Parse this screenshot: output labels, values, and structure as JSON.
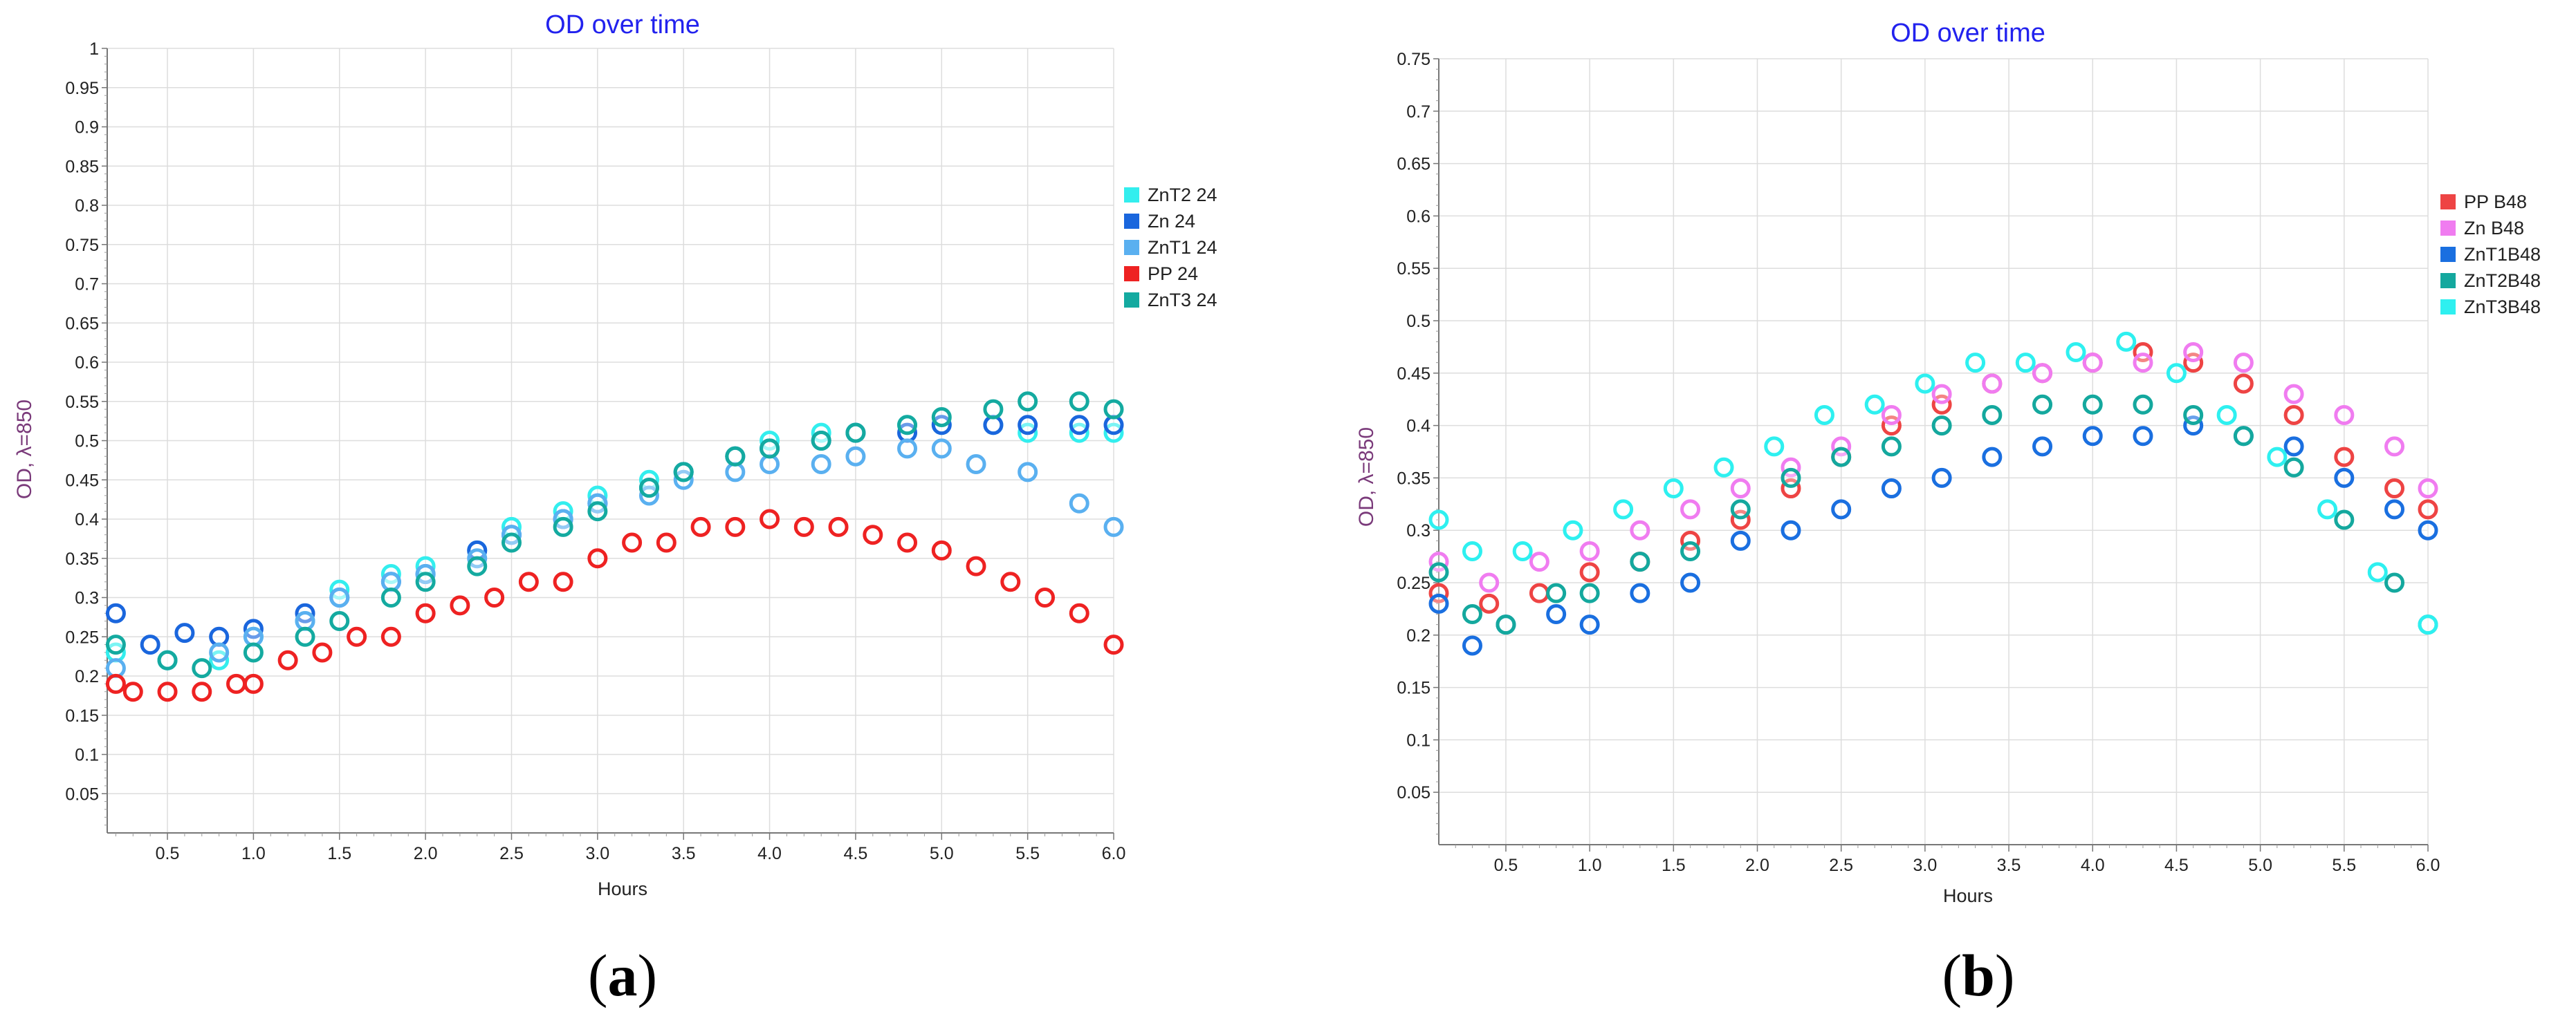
{
  "chart_data": [
    {
      "id": "a",
      "type": "scatter",
      "panel_label": "a",
      "title": "OD over time",
      "xlabel": "Hours",
      "ylabel": "OD, λ=850",
      "xlim": [
        0.15,
        6.0
      ],
      "ylim": [
        0,
        1
      ],
      "x_ticks": [
        "0.5",
        "1.0",
        "1.5",
        "2.0",
        "2.5",
        "3.0",
        "3.5",
        "4.0",
        "4.5",
        "5.0",
        "5.5",
        "6.0"
      ],
      "y_ticks": [
        "0.05",
        "0.1",
        "0.15",
        "0.2",
        "0.25",
        "0.3",
        "0.35",
        "0.4",
        "0.45",
        "0.5",
        "0.55",
        "0.6",
        "0.65",
        "0.7",
        "0.75",
        "0.8",
        "0.85",
        "0.9",
        "0.95",
        "1"
      ],
      "grid": true,
      "legend_position": "right",
      "series": [
        {
          "name": "ZnT2 24",
          "color": "#33eeee",
          "values": [
            [
              0.2,
              0.23
            ],
            [
              0.5,
              0.22
            ],
            [
              0.8,
              0.22
            ],
            [
              1.0,
              0.25
            ],
            [
              1.3,
              0.27
            ],
            [
              1.5,
              0.31
            ],
            [
              1.8,
              0.33
            ],
            [
              2.0,
              0.34
            ],
            [
              2.3,
              0.36
            ],
            [
              2.5,
              0.39
            ],
            [
              2.8,
              0.41
            ],
            [
              3.0,
              0.43
            ],
            [
              3.3,
              0.45
            ],
            [
              3.5,
              0.46
            ],
            [
              3.8,
              0.48
            ],
            [
              4.0,
              0.5
            ],
            [
              4.3,
              0.51
            ],
            [
              4.5,
              0.51
            ],
            [
              4.8,
              0.52
            ],
            [
              5.0,
              0.52
            ],
            [
              5.3,
              0.52
            ],
            [
              5.5,
              0.51
            ],
            [
              5.8,
              0.51
            ],
            [
              6.0,
              0.51
            ]
          ]
        },
        {
          "name": "Zn 24",
          "color": "#1a66dd",
          "values": [
            [
              0.2,
              0.28
            ],
            [
              0.4,
              0.24
            ],
            [
              0.6,
              0.255
            ],
            [
              0.8,
              0.25
            ],
            [
              1.0,
              0.26
            ],
            [
              1.3,
              0.28
            ],
            [
              1.5,
              0.3
            ],
            [
              1.8,
              0.32
            ],
            [
              2.0,
              0.33
            ],
            [
              2.3,
              0.36
            ],
            [
              2.5,
              0.38
            ],
            [
              2.8,
              0.4
            ],
            [
              3.0,
              0.42
            ],
            [
              3.3,
              0.44
            ],
            [
              3.5,
              0.46
            ],
            [
              3.8,
              0.48
            ],
            [
              4.0,
              0.49
            ],
            [
              4.3,
              0.5
            ],
            [
              4.5,
              0.51
            ],
            [
              4.8,
              0.51
            ],
            [
              5.0,
              0.52
            ],
            [
              5.3,
              0.52
            ],
            [
              5.5,
              0.52
            ],
            [
              5.8,
              0.52
            ],
            [
              6.0,
              0.52
            ]
          ]
        },
        {
          "name": "ZnT1 24",
          "color": "#5ab0f0",
          "values": [
            [
              0.2,
              0.21
            ],
            [
              0.5,
              0.22
            ],
            [
              0.8,
              0.23
            ],
            [
              1.0,
              0.25
            ],
            [
              1.3,
              0.27
            ],
            [
              1.5,
              0.3
            ],
            [
              1.8,
              0.32
            ],
            [
              2.0,
              0.33
            ],
            [
              2.3,
              0.35
            ],
            [
              2.5,
              0.38
            ],
            [
              2.8,
              0.4
            ],
            [
              3.0,
              0.42
            ],
            [
              3.3,
              0.43
            ],
            [
              3.5,
              0.45
            ],
            [
              3.8,
              0.46
            ],
            [
              4.0,
              0.47
            ],
            [
              4.3,
              0.47
            ],
            [
              4.5,
              0.48
            ],
            [
              4.8,
              0.49
            ],
            [
              5.0,
              0.49
            ],
            [
              5.2,
              0.47
            ],
            [
              5.5,
              0.46
            ],
            [
              5.8,
              0.42
            ],
            [
              6.0,
              0.39
            ]
          ]
        },
        {
          "name": "PP 24",
          "color": "#ee2222",
          "values": [
            [
              0.2,
              0.19
            ],
            [
              0.3,
              0.18
            ],
            [
              0.5,
              0.18
            ],
            [
              0.7,
              0.18
            ],
            [
              0.9,
              0.19
            ],
            [
              1.0,
              0.19
            ],
            [
              1.2,
              0.22
            ],
            [
              1.4,
              0.23
            ],
            [
              1.6,
              0.25
            ],
            [
              1.8,
              0.25
            ],
            [
              2.0,
              0.28
            ],
            [
              2.2,
              0.29
            ],
            [
              2.4,
              0.3
            ],
            [
              2.6,
              0.32
            ],
            [
              2.8,
              0.32
            ],
            [
              3.0,
              0.35
            ],
            [
              3.2,
              0.37
            ],
            [
              3.4,
              0.37
            ],
            [
              3.6,
              0.39
            ],
            [
              3.8,
              0.39
            ],
            [
              4.0,
              0.4
            ],
            [
              4.2,
              0.39
            ],
            [
              4.4,
              0.39
            ],
            [
              4.6,
              0.38
            ],
            [
              4.8,
              0.37
            ],
            [
              5.0,
              0.36
            ],
            [
              5.2,
              0.34
            ],
            [
              5.4,
              0.32
            ],
            [
              5.6,
              0.3
            ],
            [
              5.8,
              0.28
            ],
            [
              6.0,
              0.24
            ]
          ]
        },
        {
          "name": "ZnT3 24",
          "color": "#14aaa0",
          "values": [
            [
              0.2,
              0.24
            ],
            [
              0.5,
              0.22
            ],
            [
              0.7,
              0.21
            ],
            [
              1.0,
              0.23
            ],
            [
              1.3,
              0.25
            ],
            [
              1.5,
              0.27
            ],
            [
              1.8,
              0.3
            ],
            [
              2.0,
              0.32
            ],
            [
              2.3,
              0.34
            ],
            [
              2.5,
              0.37
            ],
            [
              2.8,
              0.39
            ],
            [
              3.0,
              0.41
            ],
            [
              3.3,
              0.44
            ],
            [
              3.5,
              0.46
            ],
            [
              3.8,
              0.48
            ],
            [
              4.0,
              0.49
            ],
            [
              4.3,
              0.5
            ],
            [
              4.5,
              0.51
            ],
            [
              4.8,
              0.52
            ],
            [
              5.0,
              0.53
            ],
            [
              5.3,
              0.54
            ],
            [
              5.5,
              0.55
            ],
            [
              5.8,
              0.55
            ],
            [
              6.0,
              0.54
            ]
          ]
        }
      ]
    },
    {
      "id": "b",
      "type": "scatter",
      "panel_label": "b",
      "title": "OD over time",
      "xlabel": "Hours",
      "ylabel": "OD, λ=850",
      "xlim": [
        0.1,
        6.0
      ],
      "ylim": [
        0,
        0.75
      ],
      "x_ticks": [
        "0.5",
        "1.0",
        "1.5",
        "2.0",
        "2.5",
        "3.0",
        "3.5",
        "4.0",
        "4.5",
        "5.0",
        "5.5",
        "6.0"
      ],
      "y_ticks": [
        "0.05",
        "0.1",
        "0.15",
        "0.2",
        "0.25",
        "0.3",
        "0.35",
        "0.4",
        "0.45",
        "0.5",
        "0.55",
        "0.6",
        "0.65",
        "0.7",
        "0.75"
      ],
      "grid": true,
      "legend_position": "right",
      "series": [
        {
          "name": "PP B48",
          "color": "#ee4444",
          "values": [
            [
              0.1,
              0.24
            ],
            [
              0.4,
              0.23
            ],
            [
              0.7,
              0.24
            ],
            [
              1.0,
              0.26
            ],
            [
              1.3,
              0.27
            ],
            [
              1.6,
              0.29
            ],
            [
              1.9,
              0.31
            ],
            [
              2.2,
              0.34
            ],
            [
              2.5,
              0.37
            ],
            [
              2.8,
              0.4
            ],
            [
              3.1,
              0.42
            ],
            [
              3.4,
              0.44
            ],
            [
              3.7,
              0.45
            ],
            [
              4.0,
              0.46
            ],
            [
              4.3,
              0.47
            ],
            [
              4.6,
              0.46
            ],
            [
              4.9,
              0.44
            ],
            [
              5.2,
              0.41
            ],
            [
              5.5,
              0.37
            ],
            [
              5.8,
              0.34
            ],
            [
              6.0,
              0.32
            ]
          ]
        },
        {
          "name": "Zn B48",
          "color": "#f07cf0",
          "values": [
            [
              0.1,
              0.27
            ],
            [
              0.4,
              0.25
            ],
            [
              0.7,
              0.27
            ],
            [
              1.0,
              0.28
            ],
            [
              1.3,
              0.3
            ],
            [
              1.6,
              0.32
            ],
            [
              1.9,
              0.34
            ],
            [
              2.2,
              0.36
            ],
            [
              2.5,
              0.38
            ],
            [
              2.8,
              0.41
            ],
            [
              3.1,
              0.43
            ],
            [
              3.4,
              0.44
            ],
            [
              3.7,
              0.45
            ],
            [
              4.0,
              0.46
            ],
            [
              4.3,
              0.46
            ],
            [
              4.6,
              0.47
            ],
            [
              4.9,
              0.46
            ],
            [
              5.2,
              0.43
            ],
            [
              5.5,
              0.41
            ],
            [
              5.8,
              0.38
            ],
            [
              6.0,
              0.34
            ]
          ]
        },
        {
          "name": "ZnT1B48",
          "color": "#1a6fe0",
          "values": [
            [
              0.1,
              0.23
            ],
            [
              0.3,
              0.19
            ],
            [
              0.5,
              0.21
            ],
            [
              0.8,
              0.22
            ],
            [
              1.0,
              0.21
            ],
            [
              1.3,
              0.24
            ],
            [
              1.6,
              0.25
            ],
            [
              1.9,
              0.29
            ],
            [
              2.2,
              0.3
            ],
            [
              2.5,
              0.32
            ],
            [
              2.8,
              0.34
            ],
            [
              3.1,
              0.35
            ],
            [
              3.4,
              0.37
            ],
            [
              3.7,
              0.38
            ],
            [
              4.0,
              0.39
            ],
            [
              4.3,
              0.39
            ],
            [
              4.6,
              0.4
            ],
            [
              4.9,
              0.39
            ],
            [
              5.2,
              0.38
            ],
            [
              5.5,
              0.35
            ],
            [
              5.8,
              0.32
            ],
            [
              6.0,
              0.3
            ]
          ]
        },
        {
          "name": "ZnT2B48",
          "color": "#14a89e",
          "values": [
            [
              0.1,
              0.26
            ],
            [
              0.3,
              0.22
            ],
            [
              0.5,
              0.21
            ],
            [
              0.8,
              0.24
            ],
            [
              1.0,
              0.24
            ],
            [
              1.3,
              0.27
            ],
            [
              1.6,
              0.28
            ],
            [
              1.9,
              0.32
            ],
            [
              2.2,
              0.35
            ],
            [
              2.5,
              0.37
            ],
            [
              2.8,
              0.38
            ],
            [
              3.1,
              0.4
            ],
            [
              3.4,
              0.41
            ],
            [
              3.7,
              0.42
            ],
            [
              4.0,
              0.42
            ],
            [
              4.3,
              0.42
            ],
            [
              4.6,
              0.41
            ],
            [
              4.9,
              0.39
            ],
            [
              5.2,
              0.36
            ],
            [
              5.5,
              0.31
            ],
            [
              5.8,
              0.25
            ],
            [
              6.0,
              0.21
            ]
          ]
        },
        {
          "name": "ZnT3B48",
          "color": "#2ef0f0",
          "values": [
            [
              0.1,
              0.31
            ],
            [
              0.3,
              0.28
            ],
            [
              0.6,
              0.28
            ],
            [
              0.9,
              0.3
            ],
            [
              1.2,
              0.32
            ],
            [
              1.5,
              0.34
            ],
            [
              1.8,
              0.36
            ],
            [
              2.1,
              0.38
            ],
            [
              2.4,
              0.41
            ],
            [
              2.7,
              0.42
            ],
            [
              3.0,
              0.44
            ],
            [
              3.3,
              0.46
            ],
            [
              3.6,
              0.46
            ],
            [
              3.9,
              0.47
            ],
            [
              4.2,
              0.48
            ],
            [
              4.5,
              0.45
            ],
            [
              4.8,
              0.41
            ],
            [
              5.1,
              0.37
            ],
            [
              5.4,
              0.32
            ],
            [
              5.7,
              0.26
            ],
            [
              6.0,
              0.21
            ]
          ]
        }
      ]
    }
  ]
}
